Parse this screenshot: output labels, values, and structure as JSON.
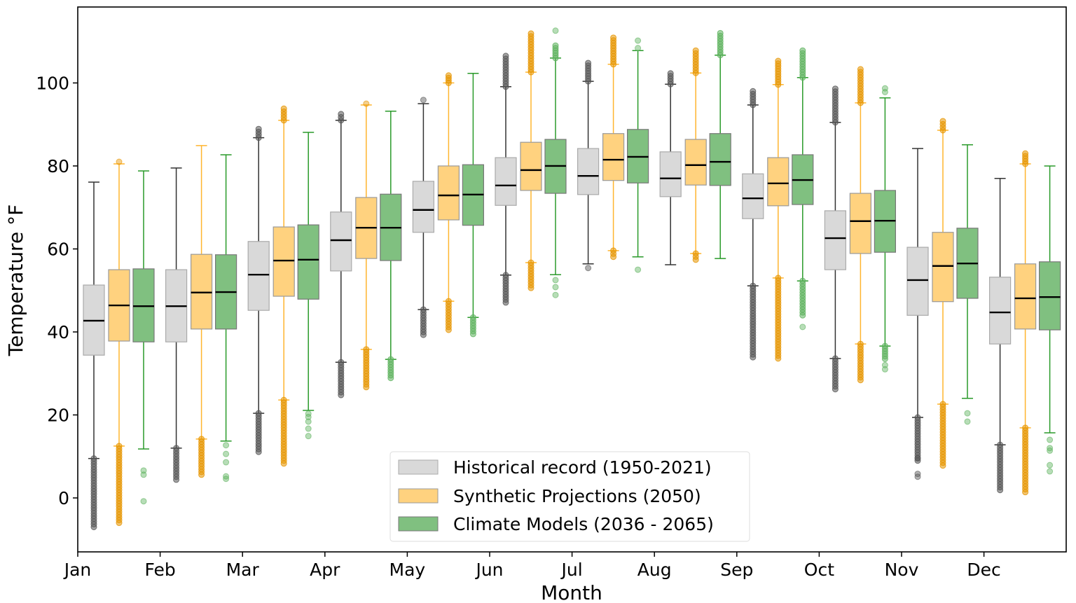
{
  "chart_data": {
    "type": "box",
    "title": "",
    "xlabel": "Month",
    "ylabel": "Temperature °F",
    "ylim": [
      -13,
      118.3
    ],
    "yticks": [
      0,
      20,
      40,
      60,
      80,
      100
    ],
    "categories": [
      "Jan",
      "Feb",
      "Mar",
      "Apr",
      "May",
      "Jun",
      "Jul",
      "Aug",
      "Sep",
      "Oct",
      "Nov",
      "Dec"
    ],
    "grid": false,
    "legend_position": "bottom-center",
    "stat_order": [
      "whisker_low",
      "q1",
      "median",
      "q3",
      "whisker_high"
    ],
    "series": [
      {
        "name": "Historical record (1950-2021)",
        "fill": "#d9d9d9",
        "edge": "#aaaaaa",
        "whisker": "#333333",
        "flier": "#555555",
        "boxes": [
          [
            9.5,
            34.4,
            42.7,
            51.3,
            76.1
          ],
          [
            12,
            37.6,
            46.2,
            55,
            79.5
          ],
          [
            20.4,
            45.2,
            53.8,
            61.8,
            86.8
          ],
          [
            32.7,
            54.7,
            62.1,
            68.9,
            91
          ],
          [
            45.4,
            64,
            69.4,
            76.3,
            95
          ],
          [
            53.7,
            70.5,
            75.3,
            82,
            99.1
          ],
          [
            56.4,
            73.1,
            77.6,
            84.2,
            100.4
          ],
          [
            56.2,
            72.6,
            77,
            83.4,
            99.7
          ],
          [
            51.1,
            67.3,
            72.2,
            78.1,
            94.7
          ],
          [
            33.6,
            55,
            62.6,
            69.2,
            90.5
          ],
          [
            19.4,
            44,
            52.5,
            60.4,
            84.2
          ],
          [
            12.8,
            37.1,
            44.7,
            53.2,
            77
          ]
        ],
        "outlier_ranges": [
          [
            [
              -7,
              9.5
            ]
          ],
          [
            [
              4.4,
              12
            ]
          ],
          [
            [
              11.1,
              20.4
            ],
            [
              86.8,
              88.9
            ]
          ],
          [
            [
              24.8,
              32.7
            ],
            [
              91,
              92.5
            ]
          ],
          [
            [
              39.3,
              45.4
            ]
          ],
          [
            [
              47.1,
              53.7
            ],
            [
              99.1,
              106.5
            ]
          ],
          [
            [
              100.4,
              104.8
            ]
          ],
          [
            [
              99.7,
              102.3
            ]
          ],
          [
            [
              33.9,
              51.1
            ],
            [
              94.7,
              98
            ]
          ],
          [
            [
              26.2,
              33.6
            ],
            [
              90.5,
              98.6
            ]
          ],
          [
            [
              9,
              19.4
            ]
          ],
          [
            [
              1.9,
              12.8
            ]
          ]
        ],
        "outliers": [
          [],
          [],
          [],
          [],
          [
            95.9
          ],
          [],
          [
            55.4
          ],
          [],
          [],
          [],
          [
            5.1,
            5.8,
            9.5
          ],
          []
        ]
      },
      {
        "name": "Synthetic Projections (2050)",
        "fill": "#ffd27f",
        "edge": "#999999",
        "whisker": "#ffb52e",
        "flier": "#e69500",
        "boxes": [
          [
            12.5,
            37.8,
            46.4,
            55,
            80.5
          ],
          [
            14.2,
            40.7,
            49.5,
            58.7,
            84.9
          ],
          [
            23.6,
            48.6,
            57.2,
            65.3,
            91
          ],
          [
            35.8,
            57.7,
            65.1,
            72.4,
            94.7
          ],
          [
            47.4,
            67,
            72.9,
            80,
            100
          ],
          [
            56.7,
            74.1,
            79,
            85.7,
            102.6
          ],
          [
            59.6,
            76.5,
            81.5,
            87.8,
            104.5
          ],
          [
            58.9,
            75.4,
            80.2,
            86.4,
            102.4
          ],
          [
            53,
            70.4,
            75.8,
            82,
            99.6
          ],
          [
            37.1,
            58.9,
            66.7,
            73.4,
            95.2
          ],
          [
            22.6,
            47.3,
            55.9,
            64,
            88.6
          ],
          [
            16.9,
            40.7,
            48.1,
            56.4,
            80.5
          ]
        ],
        "outlier_ranges": [
          [
            [
              -6,
              12.5
            ]
          ],
          [
            [
              5.6,
              14.2
            ]
          ],
          [
            [
              8.3,
              23.6
            ],
            [
              91,
              93.8
            ]
          ],
          [
            [
              26.7,
              35.8
            ]
          ],
          [
            [
              40.5,
              47.4
            ],
            [
              100,
              101.8
            ]
          ],
          [
            [
              50.6,
              56.7
            ],
            [
              102.6,
              111.9
            ]
          ],
          [
            [
              58.1,
              59.6
            ],
            [
              104.5,
              110.9
            ]
          ],
          [
            [
              57.4,
              58.9
            ],
            [
              102.4,
              107.8
            ]
          ],
          [
            [
              33.6,
              53
            ],
            [
              99.6,
              105.3
            ]
          ],
          [
            [
              28.4,
              37.1
            ],
            [
              95.2,
              103.3
            ]
          ],
          [
            [
              7.8,
              22.6
            ],
            [
              88.6,
              90.8
            ]
          ],
          [
            [
              1.4,
              16.9
            ],
            [
              80.5,
              83
            ]
          ]
        ],
        "outliers": [
          [
            81
          ],
          [],
          [],
          [
            95
          ],
          [],
          [],
          [],
          [],
          [],
          [],
          [],
          []
        ]
      },
      {
        "name": "Climate Models (2036 - 2065)",
        "fill": "#80c080",
        "edge": "#777777",
        "whisker": "#2a9a2a",
        "flier": "#5fb35f",
        "boxes": [
          [
            11.8,
            37.6,
            46.2,
            55.2,
            78.8
          ],
          [
            13.7,
            40.7,
            49.6,
            58.6,
            82.7
          ],
          [
            21.1,
            47.9,
            57.4,
            65.8,
            88.1
          ],
          [
            33.4,
            57.2,
            65.1,
            73.2,
            93.2
          ],
          [
            43.5,
            65.7,
            73.1,
            80.3,
            102.3
          ],
          [
            53.8,
            73.4,
            80,
            86.4,
            106
          ],
          [
            58.1,
            75.9,
            82.2,
            88.8,
            107.8
          ],
          [
            57.7,
            75.3,
            81,
            87.8,
            106.7
          ],
          [
            52.3,
            70.7,
            76.6,
            82.7,
            101.3
          ],
          [
            36.6,
            59.2,
            66.8,
            74.1,
            96.4
          ],
          [
            24,
            48.1,
            56.5,
            65,
            85.1
          ],
          [
            15.7,
            40.5,
            48.4,
            56.9,
            80
          ]
        ],
        "outlier_ranges": [
          [],
          [],
          [],
          [
            [
              28.9,
              33.4
            ]
          ],
          [
            [
              39.5,
              43.5
            ]
          ],
          [
            [
              106,
              109
            ]
          ],
          [],
          [
            [
              106.7,
              112
            ]
          ],
          [
            [
              44,
              52.3
            ],
            [
              101.3,
              107.8
            ]
          ],
          [
            [
              33.5,
              36.6
            ]
          ],
          [],
          []
        ],
        "outliers": [
          [
            6.6,
            5.6,
            -0.8
          ],
          [
            12.7,
            10.6,
            8.6,
            5.2,
            4.6
          ],
          [
            20.3,
            19.5,
            18.4,
            16.7,
            14.9
          ],
          [],
          [],
          [
            112.6,
            52.5,
            50.8,
            48.9
          ],
          [
            110.2,
            108.4,
            55
          ],
          [],
          [
            41.2
          ],
          [
            31,
            32,
            97.8,
            98.7
          ],
          [
            20.4,
            18.4
          ],
          [
            14,
            12,
            11.4,
            7.9,
            6.4
          ]
        ]
      }
    ]
  }
}
